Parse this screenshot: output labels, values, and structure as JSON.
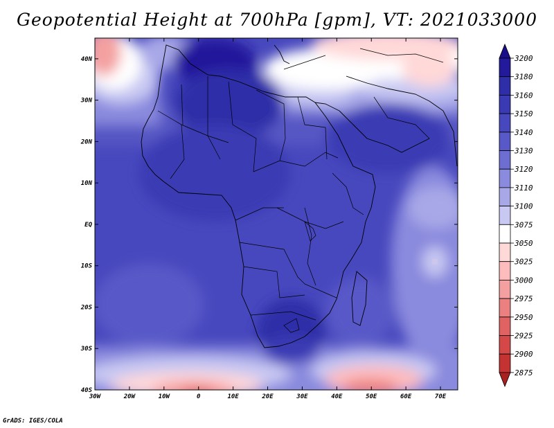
{
  "map": {
    "title": "Geopotential Height at 700hPa [gpm], VT: 2021033000",
    "credit": "GrADS: IGES/COLA",
    "variable": "geopotential height 700 hPa",
    "units": "gpm",
    "valid_time": "2021033000",
    "lon_labels": [
      "30W",
      "20W",
      "10W",
      "0",
      "10E",
      "20E",
      "30E",
      "40E",
      "50E",
      "60E",
      "70E"
    ],
    "lat_labels": [
      "40N",
      "30N",
      "20N",
      "10N",
      "EQ",
      "10S",
      "20S",
      "30S",
      "40S"
    ],
    "lon_range": [
      -30,
      75
    ],
    "lat_range": [
      -40,
      45
    ],
    "colorbar": {
      "levels": [
        "3200",
        "3180",
        "3160",
        "3150",
        "3140",
        "3130",
        "3120",
        "3110",
        "3100",
        "3075",
        "3050",
        "3025",
        "3000",
        "2975",
        "2950",
        "2925",
        "2900",
        "2875"
      ],
      "colors": [
        "#1a0d8a",
        "#23199b",
        "#2e2ea8",
        "#3a3ab4",
        "#4848be",
        "#5858c8",
        "#6e6ed2",
        "#8a8ade",
        "#a8a8e8",
        "#c8c8f2",
        "#ffffff",
        "#ffd8d8",
        "#ffbcbc",
        "#f4a0a0",
        "#ea8080",
        "#e06262",
        "#d44848",
        "#c43232",
        "#a82020"
      ]
    }
  }
}
